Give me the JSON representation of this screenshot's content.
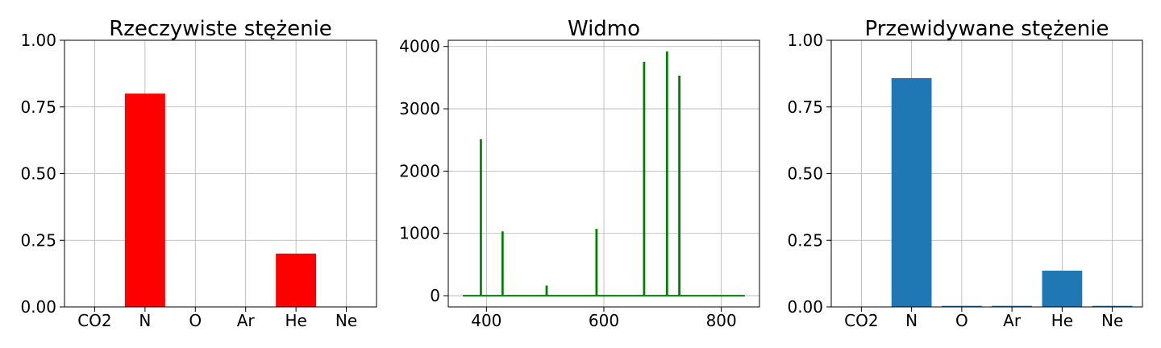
{
  "chart_data": [
    {
      "type": "bar",
      "title": "Rzeczywiste stężenie",
      "categories": [
        "CO2",
        "N",
        "O",
        "Ar",
        "He",
        "Ne"
      ],
      "values": [
        0.0,
        0.8,
        0.0,
        0.0,
        0.2,
        0.0
      ],
      "ylim": [
        0,
        1
      ],
      "yticks": [
        0,
        0.25,
        0.5,
        0.75,
        1.0
      ],
      "ytick_labels": [
        "0.00",
        "0.25",
        "0.50",
        "0.75",
        "1.00"
      ],
      "xlabel": "",
      "ylabel": "",
      "grid": true,
      "color": "#ff0000"
    },
    {
      "type": "line",
      "title": "Widmo",
      "x": [
        360,
        390,
        390,
        391,
        391,
        427,
        427,
        428,
        428,
        502,
        502,
        503,
        503,
        587,
        587,
        588,
        588,
        668,
        668,
        669,
        669,
        707,
        707,
        708,
        708,
        728,
        728,
        729,
        729,
        840
      ],
      "y": [
        0,
        0,
        2500,
        2500,
        0,
        0,
        1020,
        1020,
        0,
        0,
        150,
        150,
        0,
        0,
        1060,
        1060,
        0,
        0,
        3740,
        3740,
        0,
        0,
        3910,
        3910,
        0,
        0,
        3520,
        3520,
        0,
        0
      ],
      "xlim": [
        335,
        865
      ],
      "ylim": [
        -180,
        4100
      ],
      "xticks": [
        400,
        600,
        800
      ],
      "yticks": [
        0,
        1000,
        2000,
        3000,
        4000
      ],
      "xlabel": "",
      "ylabel": "",
      "grid": true,
      "color": "#008000"
    },
    {
      "type": "bar",
      "title": "Przewidywane stężenie",
      "categories": [
        "CO2",
        "N",
        "O",
        "Ar",
        "He",
        "Ne"
      ],
      "values": [
        0.0,
        0.858,
        0.004,
        0.004,
        0.136,
        0.004
      ],
      "ylim": [
        0,
        1
      ],
      "yticks": [
        0,
        0.25,
        0.5,
        0.75,
        1.0
      ],
      "ytick_labels": [
        "0.00",
        "0.25",
        "0.50",
        "0.75",
        "1.00"
      ],
      "xlabel": "",
      "ylabel": "",
      "grid": true,
      "color": "#1f77b4"
    }
  ]
}
